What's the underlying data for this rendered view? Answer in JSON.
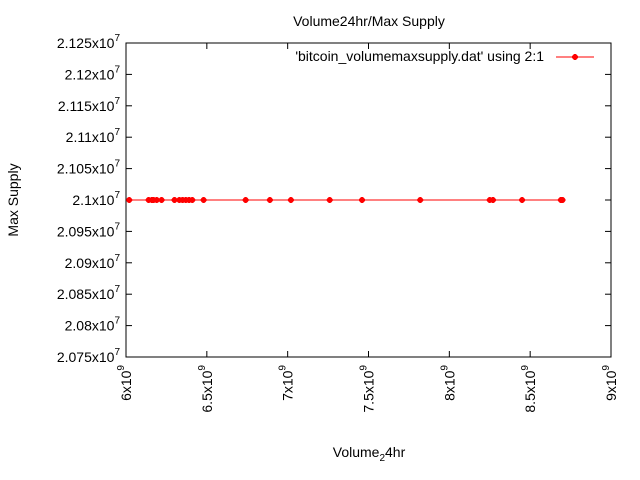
{
  "chart_data": {
    "type": "line",
    "title": "Volume24hr/Max Supply",
    "xlabel": "Volume",
    "xlabel_sub": "2",
    "xlabel_suffix": "4hr",
    "ylabel": "Max Supply",
    "legend": {
      "label": "'bitcoin_volumemaxsupply.dat' using 2:1",
      "placement": "top-right"
    },
    "xlim": [
      6000000000,
      9000000000
    ],
    "ylim": [
      20750000,
      21250000
    ],
    "x_ticks": [
      {
        "value": 6000000000,
        "mantissa": "6",
        "base": "x10",
        "exp": "9"
      },
      {
        "value": 6500000000,
        "mantissa": "6.5",
        "base": "x10",
        "exp": "9"
      },
      {
        "value": 7000000000,
        "mantissa": "7",
        "base": "x10",
        "exp": "9"
      },
      {
        "value": 7500000000,
        "mantissa": "7.5",
        "base": "x10",
        "exp": "9"
      },
      {
        "value": 8000000000,
        "mantissa": "8",
        "base": "x10",
        "exp": "9"
      },
      {
        "value": 8500000000,
        "mantissa": "8.5",
        "base": "x10",
        "exp": "9"
      },
      {
        "value": 9000000000,
        "mantissa": "9",
        "base": "x10",
        "exp": "9"
      }
    ],
    "y_ticks": [
      {
        "value": 20750000,
        "mantissa": "2.075",
        "base": "x10",
        "exp": "7"
      },
      {
        "value": 20800000,
        "mantissa": "2.08",
        "base": "x10",
        "exp": "7"
      },
      {
        "value": 20850000,
        "mantissa": "2.085",
        "base": "x10",
        "exp": "7"
      },
      {
        "value": 20900000,
        "mantissa": "2.09",
        "base": "x10",
        "exp": "7"
      },
      {
        "value": 20950000,
        "mantissa": "2.095",
        "base": "x10",
        "exp": "7"
      },
      {
        "value": 21000000,
        "mantissa": "2.1",
        "base": "x10",
        "exp": "7"
      },
      {
        "value": 21050000,
        "mantissa": "2.105",
        "base": "x10",
        "exp": "7"
      },
      {
        "value": 21100000,
        "mantissa": "2.11",
        "base": "x10",
        "exp": "7"
      },
      {
        "value": 21150000,
        "mantissa": "2.115",
        "base": "x10",
        "exp": "7"
      },
      {
        "value": 21200000,
        "mantissa": "2.12",
        "base": "x10",
        "exp": "7"
      },
      {
        "value": 21250000,
        "mantissa": "2.125",
        "base": "x10",
        "exp": "7"
      }
    ],
    "grid": false,
    "series": [
      {
        "color": "#ff0000",
        "marker": "cross",
        "x": [
          6020000000,
          6140000000,
          6160000000,
          6170000000,
          6190000000,
          6220000000,
          6300000000,
          6330000000,
          6350000000,
          6370000000,
          6390000000,
          6410000000,
          6480000000,
          6740000000,
          6890000000,
          7020000000,
          7260000000,
          7460000000,
          7820000000,
          8250000000,
          8270000000,
          8450000000,
          8690000000,
          8700000000
        ],
        "y": [
          21000000,
          21000000,
          21000000,
          21000000,
          21000000,
          21000000,
          21000000,
          21000000,
          21000000,
          21000000,
          21000000,
          21000000,
          21000000,
          21000000,
          21000000,
          21000000,
          21000000,
          21000000,
          21000000,
          21000000,
          21000000,
          21000000,
          21000000,
          21000000
        ]
      }
    ]
  }
}
